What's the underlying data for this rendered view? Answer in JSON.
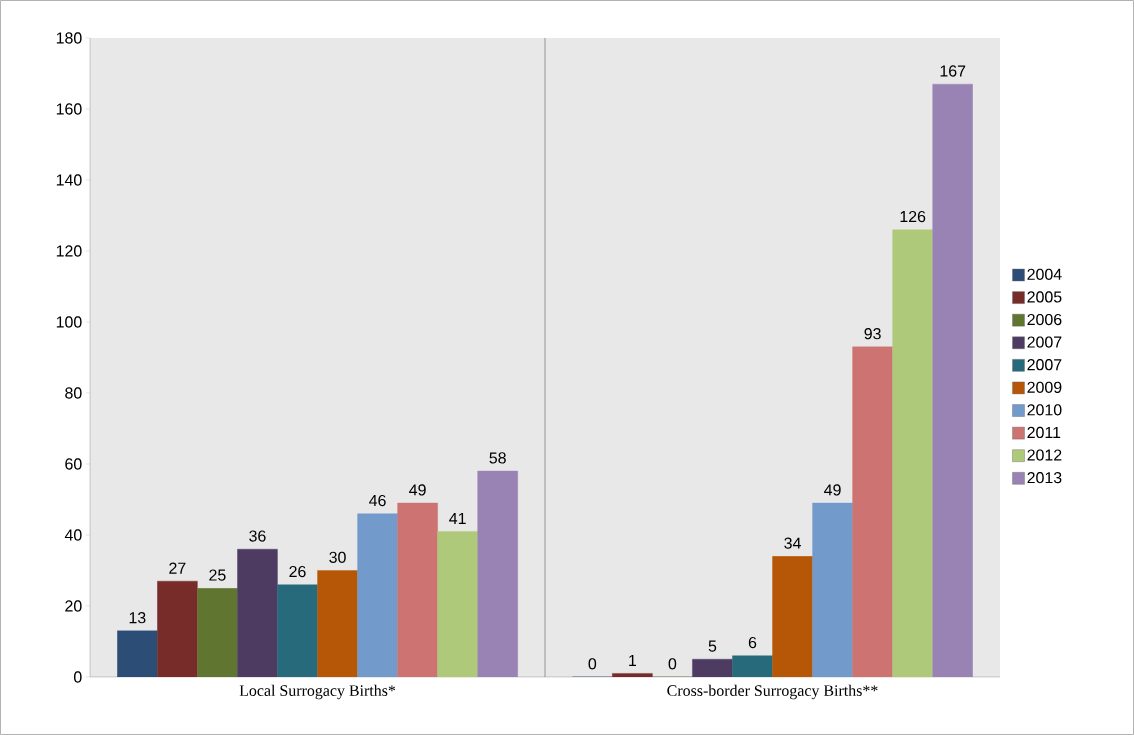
{
  "chart_data": {
    "type": "bar",
    "categories": [
      "Local Surrogacy Births*",
      "Cross-border Surrogacy Births**"
    ],
    "series": [
      {
        "name": "2004",
        "color": "#2c4d75",
        "values": [
          13,
          0
        ]
      },
      {
        "name": "2005",
        "color": "#772c2a",
        "values": [
          27,
          1
        ]
      },
      {
        "name": "2006",
        "color": "#5f7530",
        "values": [
          25,
          0
        ]
      },
      {
        "name": "2007",
        "color": "#4d3b62",
        "values": [
          36,
          5
        ]
      },
      {
        "name": "2007",
        "color": "#276a7c",
        "values": [
          26,
          6
        ]
      },
      {
        "name": "2009",
        "color": "#b65708",
        "values": [
          30,
          34
        ]
      },
      {
        "name": "2010",
        "color": "#729aca",
        "values": [
          46,
          49
        ]
      },
      {
        "name": "2011",
        "color": "#cd7371",
        "values": [
          49,
          93
        ]
      },
      {
        "name": "2012",
        "color": "#afc97a",
        "values": [
          41,
          126
        ]
      },
      {
        "name": "2013",
        "color": "#9983b5",
        "values": [
          58,
          167
        ]
      }
    ],
    "ylim": [
      0,
      180
    ],
    "yticks": [
      0,
      20,
      40,
      60,
      80,
      100,
      120,
      140,
      160,
      180
    ],
    "data_labels": true,
    "legend": "right",
    "grid": false
  }
}
